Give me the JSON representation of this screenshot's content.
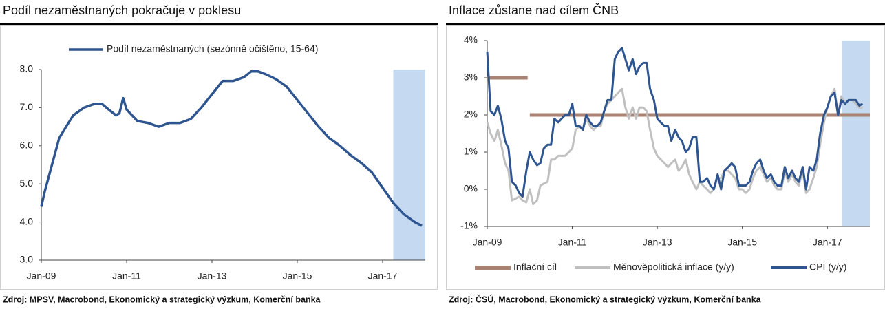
{
  "chart_data": [
    {
      "type": "line",
      "title": "Podíl nezaměstnaných pokračuje v poklesu",
      "source": "Zdroj: MPSV, Macrobond, Ekonomický a strategický výzkum, Komerční banka",
      "legend": "top",
      "xlim": [
        2009,
        2018
      ],
      "xticks": [
        {
          "value": 2009,
          "label": "Jan-09"
        },
        {
          "value": 2011,
          "label": "Jan-11"
        },
        {
          "value": 2013,
          "label": "Jan-13"
        },
        {
          "value": 2015,
          "label": "Jan-15"
        },
        {
          "value": 2017,
          "label": "Jan-17"
        }
      ],
      "ylim": [
        3,
        8
      ],
      "yticks": [
        {
          "value": 3,
          "label": "3.0"
        },
        {
          "value": 4,
          "label": "4.0"
        },
        {
          "value": 5,
          "label": "5.0"
        },
        {
          "value": 6,
          "label": "6.0"
        },
        {
          "value": 7,
          "label": "7.0"
        },
        {
          "value": 8,
          "label": "8.0"
        }
      ],
      "highlight": {
        "xrange": [
          2017.25,
          2018
        ],
        "color": "#c5d9f1"
      },
      "x": [
        2009,
        2009.08,
        2009.25,
        2009.42,
        2009.58,
        2009.75,
        2010,
        2010.25,
        2010.42,
        2010.58,
        2010.75,
        2010.83,
        2010.92,
        2011,
        2011.25,
        2011.5,
        2011.75,
        2012,
        2012.25,
        2012.5,
        2012.75,
        2013,
        2013.25,
        2013.5,
        2013.75,
        2013.92,
        2014.08,
        2014.25,
        2014.5,
        2014.75,
        2015,
        2015.25,
        2015.5,
        2015.75,
        2016,
        2016.25,
        2016.5,
        2016.75,
        2017,
        2017.25,
        2017.5,
        2017.75,
        2017.92
      ],
      "series": [
        {
          "name": "Podíl nezaměstnaných (sezónně očištěno, 15-64)",
          "color": "#2e5590",
          "width": 3.5,
          "values": [
            4.4,
            4.8,
            5.5,
            6.2,
            6.5,
            6.8,
            7.0,
            7.1,
            7.1,
            6.95,
            6.8,
            6.85,
            7.25,
            6.95,
            6.65,
            6.6,
            6.5,
            6.6,
            6.6,
            6.7,
            7.0,
            7.35,
            7.7,
            7.7,
            7.8,
            7.95,
            7.95,
            7.88,
            7.75,
            7.55,
            7.2,
            6.85,
            6.5,
            6.2,
            6.0,
            5.75,
            5.55,
            5.3,
            4.9,
            4.5,
            4.2,
            4.0,
            3.9
          ]
        }
      ]
    },
    {
      "type": "line",
      "title": "Inflace zůstane nad cílem ČNB",
      "source": "Zdroj: ČSÚ, Macrobond, Ekonomický a strategický výzkum, Komerční banka",
      "legend": "bottom",
      "xlim": [
        2009,
        2018
      ],
      "xticks": [
        {
          "value": 2009,
          "label": "Jan-09"
        },
        {
          "value": 2011,
          "label": "Jan-11"
        },
        {
          "value": 2013,
          "label": "Jan-13"
        },
        {
          "value": 2015,
          "label": "Jan-15"
        },
        {
          "value": 2017,
          "label": "Jan-17"
        }
      ],
      "ylim": [
        -1,
        4
      ],
      "yticks": [
        {
          "value": -1,
          "label": "-1%"
        },
        {
          "value": 0,
          "label": "0%"
        },
        {
          "value": 1,
          "label": "1%"
        },
        {
          "value": 2,
          "label": "2%"
        },
        {
          "value": 3,
          "label": "3%"
        },
        {
          "value": 4,
          "label": "4%"
        }
      ],
      "highlight": {
        "xrange": [
          2017.35,
          2018
        ],
        "color": "#c5d9f1"
      },
      "x": [
        2009,
        2009.08,
        2009.17,
        2009.25,
        2009.33,
        2009.42,
        2009.5,
        2009.58,
        2009.67,
        2009.75,
        2009.83,
        2009.92,
        2010,
        2010.08,
        2010.17,
        2010.25,
        2010.33,
        2010.42,
        2010.5,
        2010.58,
        2010.67,
        2010.75,
        2010.83,
        2010.92,
        2011,
        2011.08,
        2011.17,
        2011.25,
        2011.33,
        2011.42,
        2011.5,
        2011.58,
        2011.67,
        2011.75,
        2011.83,
        2011.92,
        2012,
        2012.08,
        2012.17,
        2012.25,
        2012.33,
        2012.42,
        2012.5,
        2012.58,
        2012.67,
        2012.75,
        2012.83,
        2012.92,
        2013,
        2013.08,
        2013.17,
        2013.25,
        2013.33,
        2013.42,
        2013.5,
        2013.58,
        2013.67,
        2013.75,
        2013.83,
        2013.92,
        2014,
        2014.08,
        2014.17,
        2014.25,
        2014.33,
        2014.42,
        2014.5,
        2014.58,
        2014.67,
        2014.75,
        2014.83,
        2014.92,
        2015,
        2015.08,
        2015.17,
        2015.25,
        2015.33,
        2015.42,
        2015.5,
        2015.58,
        2015.67,
        2015.75,
        2015.83,
        2015.92,
        2016,
        2016.08,
        2016.17,
        2016.25,
        2016.33,
        2016.42,
        2016.5,
        2016.58,
        2016.67,
        2016.75,
        2016.83,
        2016.92,
        2017,
        2017.08,
        2017.17,
        2017.25,
        2017.33,
        2017.42,
        2017.5,
        2017.58,
        2017.67,
        2017.75,
        2017.83
      ],
      "series": [
        {
          "name": "Inflační cíl",
          "color": "#a98474",
          "width": 5,
          "x": [
            2009,
            2009.95,
            2009.97,
            2010,
            2018
          ],
          "values": [
            3,
            3,
            null,
            2,
            2
          ]
        },
        {
          "name": "Měnověpolitická inflace (y/y)",
          "color": "#c0c0c0",
          "width": 3,
          "values": [
            1.8,
            1.5,
            1.3,
            1.6,
            1.2,
            0.7,
            0.5,
            -0.3,
            -0.25,
            -0.2,
            -0.3,
            -0.35,
            0.0,
            -0.4,
            -0.3,
            0.1,
            0.15,
            0.2,
            0.8,
            0.8,
            0.9,
            0.9,
            0.9,
            1.0,
            1.1,
            1.6,
            1.7,
            1.6,
            1.9,
            1.7,
            1.6,
            1.7,
            1.7,
            2.1,
            2.3,
            2.4,
            2.5,
            2.6,
            2.7,
            2.2,
            1.9,
            2.2,
            1.9,
            2.2,
            2.2,
            2.1,
            1.6,
            1.1,
            0.9,
            0.8,
            0.7,
            0.6,
            0.7,
            0.8,
            0.5,
            0.6,
            0.8,
            0.4,
            0.2,
            0.0,
            0.2,
            0.1,
            0.0,
            -0.1,
            0.0,
            0.3,
            0.3,
            0.5,
            0.5,
            0.4,
            0.3,
            0.0,
            0.0,
            -0.1,
            0.0,
            0.3,
            0.5,
            0.6,
            0.4,
            0.2,
            0.3,
            0.1,
            0.0,
            0.0,
            0.5,
            0.2,
            0.4,
            0.2,
            0.1,
            0.5,
            -0.1,
            0.0,
            0.3,
            0.6,
            1.2,
            1.8,
            2.2,
            2.5,
            2.7,
            2.0,
            2.5,
            2.3,
            2.4,
            2.4,
            2.3,
            2.2,
            2.2
          ]
        },
        {
          "name": "CPI (y/y)",
          "color": "#2e5590",
          "width": 3,
          "values": [
            3.7,
            2.1,
            2.0,
            2.25,
            1.9,
            1.3,
            1.1,
            0.2,
            0.1,
            -0.1,
            -0.2,
            0.5,
            1.0,
            0.8,
            0.65,
            0.7,
            1.1,
            1.2,
            1.2,
            1.9,
            1.8,
            1.9,
            2.0,
            2.0,
            2.3,
            1.7,
            1.7,
            1.6,
            2.0,
            1.8,
            1.7,
            1.7,
            1.8,
            2.1,
            2.4,
            2.4,
            3.5,
            3.7,
            3.8,
            3.5,
            3.2,
            3.5,
            3.1,
            3.3,
            3.4,
            3.4,
            2.7,
            2.4,
            1.9,
            1.8,
            1.7,
            1.7,
            1.3,
            1.6,
            1.4,
            1.3,
            1.0,
            1.1,
            1.4,
            1.4,
            0.2,
            0.2,
            0.3,
            0.1,
            0.0,
            0.4,
            0.0,
            0.5,
            0.6,
            0.7,
            0.6,
            0.1,
            0.1,
            0.1,
            0.2,
            0.5,
            0.7,
            0.8,
            0.5,
            0.3,
            0.4,
            0.2,
            0.1,
            0.1,
            0.6,
            0.3,
            0.5,
            0.3,
            0.2,
            0.6,
            0.0,
            0.6,
            0.5,
            0.8,
            1.5,
            2.0,
            2.2,
            2.5,
            2.6,
            2.0,
            2.4,
            2.3,
            2.4,
            2.4,
            2.4,
            2.25,
            2.3
          ]
        }
      ]
    }
  ]
}
